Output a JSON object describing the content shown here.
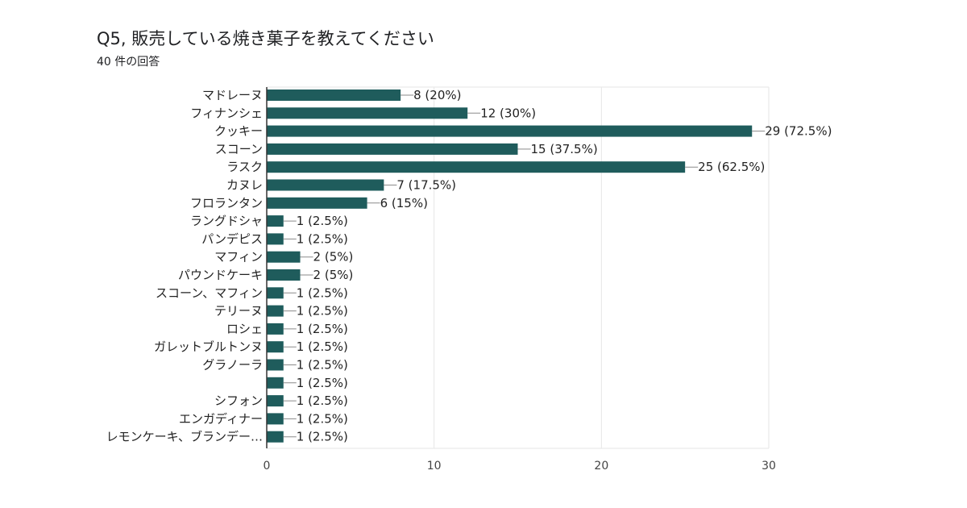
{
  "header": {
    "title": "Q5,  販売している焼き菓子を教えてください",
    "subtitle": "40 件の回答"
  },
  "colors": {
    "bar": "#1f5c5c",
    "grid": "#e6e6e6",
    "axis": "#333333",
    "leader": "#8a8a8a"
  },
  "chart_data": {
    "type": "bar",
    "orientation": "horizontal",
    "title": "Q5,  販売している焼き菓子を教えてください",
    "categories": [
      "マドレーヌ",
      "フィナンシェ",
      "クッキー",
      "スコーン",
      "ラスク",
      "カヌレ",
      "フロランタン",
      "ラングドシャ",
      "パンデピス",
      "マフィン",
      "パウンドケーキ",
      "スコーン、マフィン",
      "テリーヌ",
      "ロシェ",
      "ガレットブルトンヌ",
      "グラノーラ",
      "",
      "シフォン",
      "エンガディナー",
      "レモンケーキ、ブランデー…"
    ],
    "values": [
      8,
      12,
      29,
      15,
      25,
      7,
      6,
      1,
      1,
      2,
      2,
      1,
      1,
      1,
      1,
      1,
      1,
      1,
      1,
      1
    ],
    "value_labels": [
      "8 (20%)",
      "12 (30%)",
      "29 (72.5%)",
      "15 (37.5%)",
      "25 (62.5%)",
      "7 (17.5%)",
      "6 (15%)",
      "1 (2.5%)",
      "1 (2.5%)",
      "2 (5%)",
      "2 (5%)",
      "1 (2.5%)",
      "1 (2.5%)",
      "1 (2.5%)",
      "1 (2.5%)",
      "1 (2.5%)",
      "1 (2.5%)",
      "1 (2.5%)",
      "1 (2.5%)",
      "1 (2.5%)"
    ],
    "xlim": [
      0,
      30
    ],
    "xticks": [
      0,
      10,
      20,
      30
    ],
    "grid": true,
    "legend": "none"
  }
}
